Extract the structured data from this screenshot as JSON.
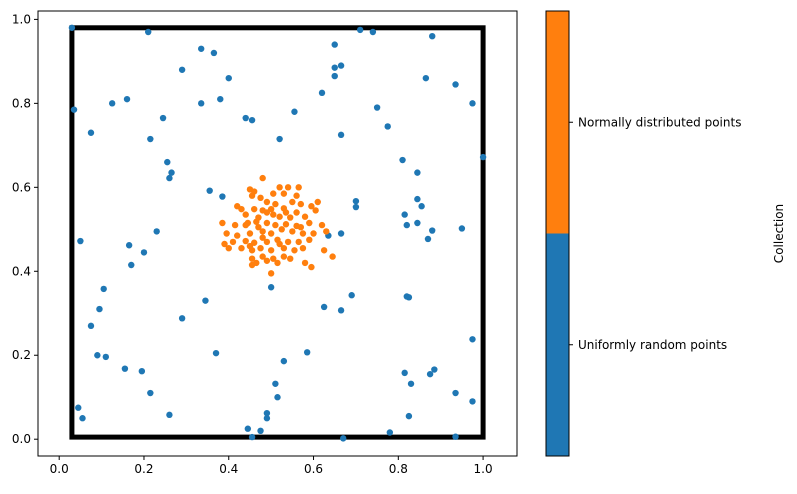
{
  "chart_data": {
    "type": "scatter",
    "xlim": [
      -0.05,
      1.08
    ],
    "ylim": [
      -0.04,
      1.02
    ],
    "x_ticks": [
      0.0,
      0.2,
      0.4,
      0.6,
      0.8,
      1.0
    ],
    "y_ticks": [
      0.0,
      0.2,
      0.4,
      0.6,
      0.8,
      1.0
    ],
    "x_tick_labels": [
      "0.0",
      "0.2",
      "0.4",
      "0.6",
      "0.8",
      "1.0"
    ],
    "y_tick_labels": [
      "0.0",
      "0.2",
      "0.4",
      "0.6",
      "0.8",
      "1.0"
    ],
    "grid": false,
    "rectangle": {
      "x0": 0.03,
      "y0": 0.005,
      "x1": 1.0,
      "y1": 0.98,
      "color": "#000000"
    },
    "colorbar": {
      "label": "Collection",
      "categories": [
        {
          "label": "Uniformly random points",
          "color": "#1f77b4"
        },
        {
          "label": "Normally distributed points",
          "color": "#ff7f0e"
        }
      ]
    },
    "series": [
      {
        "color": "#1f77b4",
        "points": [
          [
            0.03,
            0.98
          ],
          [
            0.21,
            0.97
          ],
          [
            0.71,
            0.975
          ],
          [
            0.74,
            0.97
          ],
          [
            0.88,
            0.96
          ],
          [
            0.335,
            0.93
          ],
          [
            0.365,
            0.92
          ],
          [
            0.65,
            0.94
          ],
          [
            0.65,
            0.885
          ],
          [
            0.665,
            0.89
          ],
          [
            0.29,
            0.88
          ],
          [
            0.65,
            0.865
          ],
          [
            0.4,
            0.86
          ],
          [
            0.865,
            0.86
          ],
          [
            0.935,
            0.845
          ],
          [
            0.38,
            0.81
          ],
          [
            0.16,
            0.81
          ],
          [
            0.125,
            0.8
          ],
          [
            0.335,
            0.8
          ],
          [
            0.62,
            0.825
          ],
          [
            0.975,
            0.8
          ],
          [
            0.035,
            0.785
          ],
          [
            0.75,
            0.79
          ],
          [
            0.555,
            0.78
          ],
          [
            0.44,
            0.765
          ],
          [
            0.245,
            0.765
          ],
          [
            0.455,
            0.76
          ],
          [
            0.775,
            0.745
          ],
          [
            0.075,
            0.73
          ],
          [
            0.665,
            0.725
          ],
          [
            0.215,
            0.715
          ],
          [
            0.52,
            0.715
          ],
          [
            0.81,
            0.665
          ],
          [
            0.255,
            0.66
          ],
          [
            0.265,
            0.635
          ],
          [
            0.26,
            0.622
          ],
          [
            0.845,
            0.635
          ],
          [
            1.0,
            0.672
          ],
          [
            0.355,
            0.592
          ],
          [
            0.385,
            0.578
          ],
          [
            0.845,
            0.572
          ],
          [
            0.7,
            0.567
          ],
          [
            0.7,
            0.553
          ],
          [
            0.855,
            0.555
          ],
          [
            0.815,
            0.535
          ],
          [
            0.82,
            0.51
          ],
          [
            0.845,
            0.515
          ],
          [
            0.665,
            0.49
          ],
          [
            0.88,
            0.497
          ],
          [
            0.95,
            0.502
          ],
          [
            0.23,
            0.495
          ],
          [
            0.05,
            0.472
          ],
          [
            0.87,
            0.477
          ],
          [
            0.635,
            0.485
          ],
          [
            0.165,
            0.462
          ],
          [
            0.2,
            0.445
          ],
          [
            0.17,
            0.415
          ],
          [
            0.105,
            0.358
          ],
          [
            0.5,
            0.362
          ],
          [
            0.345,
            0.33
          ],
          [
            0.095,
            0.31
          ],
          [
            0.69,
            0.343
          ],
          [
            0.82,
            0.34
          ],
          [
            0.825,
            0.338
          ],
          [
            0.625,
            0.315
          ],
          [
            0.665,
            0.307
          ],
          [
            0.29,
            0.288
          ],
          [
            0.075,
            0.27
          ],
          [
            0.975,
            0.238
          ],
          [
            0.37,
            0.205
          ],
          [
            0.585,
            0.207
          ],
          [
            0.09,
            0.2
          ],
          [
            0.11,
            0.196
          ],
          [
            0.53,
            0.186
          ],
          [
            0.155,
            0.168
          ],
          [
            0.195,
            0.162
          ],
          [
            0.815,
            0.158
          ],
          [
            0.885,
            0.166
          ],
          [
            0.875,
            0.155
          ],
          [
            0.83,
            0.132
          ],
          [
            0.51,
            0.132
          ],
          [
            0.935,
            0.11
          ],
          [
            0.215,
            0.11
          ],
          [
            0.515,
            0.1
          ],
          [
            0.975,
            0.09
          ],
          [
            0.045,
            0.075
          ],
          [
            0.26,
            0.058
          ],
          [
            0.49,
            0.062
          ],
          [
            0.49,
            0.05
          ],
          [
            0.055,
            0.05
          ],
          [
            0.825,
            0.055
          ],
          [
            0.445,
            0.025
          ],
          [
            0.475,
            0.02
          ],
          [
            0.78,
            0.016
          ],
          [
            0.455,
            0.005
          ],
          [
            0.67,
            0.002
          ],
          [
            0.935,
            0.006
          ]
        ]
      },
      {
        "color": "#ff7f0e",
        "points": [
          [
            0.48,
            0.622
          ],
          [
            0.45,
            0.595
          ],
          [
            0.46,
            0.59
          ],
          [
            0.52,
            0.6
          ],
          [
            0.54,
            0.6
          ],
          [
            0.565,
            0.6
          ],
          [
            0.455,
            0.58
          ],
          [
            0.475,
            0.575
          ],
          [
            0.505,
            0.585
          ],
          [
            0.53,
            0.585
          ],
          [
            0.49,
            0.565
          ],
          [
            0.51,
            0.56
          ],
          [
            0.55,
            0.565
          ],
          [
            0.57,
            0.56
          ],
          [
            0.595,
            0.555
          ],
          [
            0.61,
            0.565
          ],
          [
            0.42,
            0.555
          ],
          [
            0.43,
            0.548
          ],
          [
            0.46,
            0.548
          ],
          [
            0.48,
            0.545
          ],
          [
            0.5,
            0.548
          ],
          [
            0.53,
            0.55
          ],
          [
            0.56,
            0.54
          ],
          [
            0.605,
            0.545
          ],
          [
            0.44,
            0.535
          ],
          [
            0.47,
            0.528
          ],
          [
            0.52,
            0.53
          ],
          [
            0.545,
            0.528
          ],
          [
            0.58,
            0.53
          ],
          [
            0.385,
            0.515
          ],
          [
            0.415,
            0.51
          ],
          [
            0.445,
            0.515
          ],
          [
            0.465,
            0.518
          ],
          [
            0.49,
            0.515
          ],
          [
            0.51,
            0.51
          ],
          [
            0.535,
            0.512
          ],
          [
            0.56,
            0.508
          ],
          [
            0.59,
            0.515
          ],
          [
            0.62,
            0.51
          ],
          [
            0.395,
            0.49
          ],
          [
            0.42,
            0.485
          ],
          [
            0.45,
            0.49
          ],
          [
            0.48,
            0.495
          ],
          [
            0.5,
            0.49
          ],
          [
            0.525,
            0.5
          ],
          [
            0.55,
            0.495
          ],
          [
            0.575,
            0.49
          ],
          [
            0.6,
            0.49
          ],
          [
            0.63,
            0.495
          ],
          [
            0.41,
            0.47
          ],
          [
            0.44,
            0.472
          ],
          [
            0.46,
            0.468
          ],
          [
            0.49,
            0.47
          ],
          [
            0.515,
            0.475
          ],
          [
            0.54,
            0.47
          ],
          [
            0.565,
            0.47
          ],
          [
            0.59,
            0.475
          ],
          [
            0.39,
            0.465
          ],
          [
            0.4,
            0.455
          ],
          [
            0.43,
            0.455
          ],
          [
            0.455,
            0.45
          ],
          [
            0.475,
            0.455
          ],
          [
            0.5,
            0.45
          ],
          [
            0.53,
            0.455
          ],
          [
            0.555,
            0.45
          ],
          [
            0.575,
            0.455
          ],
          [
            0.625,
            0.45
          ],
          [
            0.645,
            0.435
          ],
          [
            0.455,
            0.43
          ],
          [
            0.48,
            0.435
          ],
          [
            0.505,
            0.43
          ],
          [
            0.53,
            0.435
          ],
          [
            0.545,
            0.43
          ],
          [
            0.465,
            0.42
          ],
          [
            0.49,
            0.425
          ],
          [
            0.515,
            0.42
          ],
          [
            0.58,
            0.42
          ],
          [
            0.595,
            0.41
          ],
          [
            0.455,
            0.415
          ],
          [
            0.5,
            0.395
          ],
          [
            0.47,
            0.505
          ],
          [
            0.535,
            0.54
          ],
          [
            0.44,
            0.51
          ],
          [
            0.57,
            0.505
          ],
          [
            0.48,
            0.48
          ],
          [
            0.52,
            0.465
          ],
          [
            0.505,
            0.535
          ],
          [
            0.45,
            0.46
          ],
          [
            0.56,
            0.58
          ],
          [
            0.49,
            0.54
          ]
        ]
      }
    ]
  }
}
